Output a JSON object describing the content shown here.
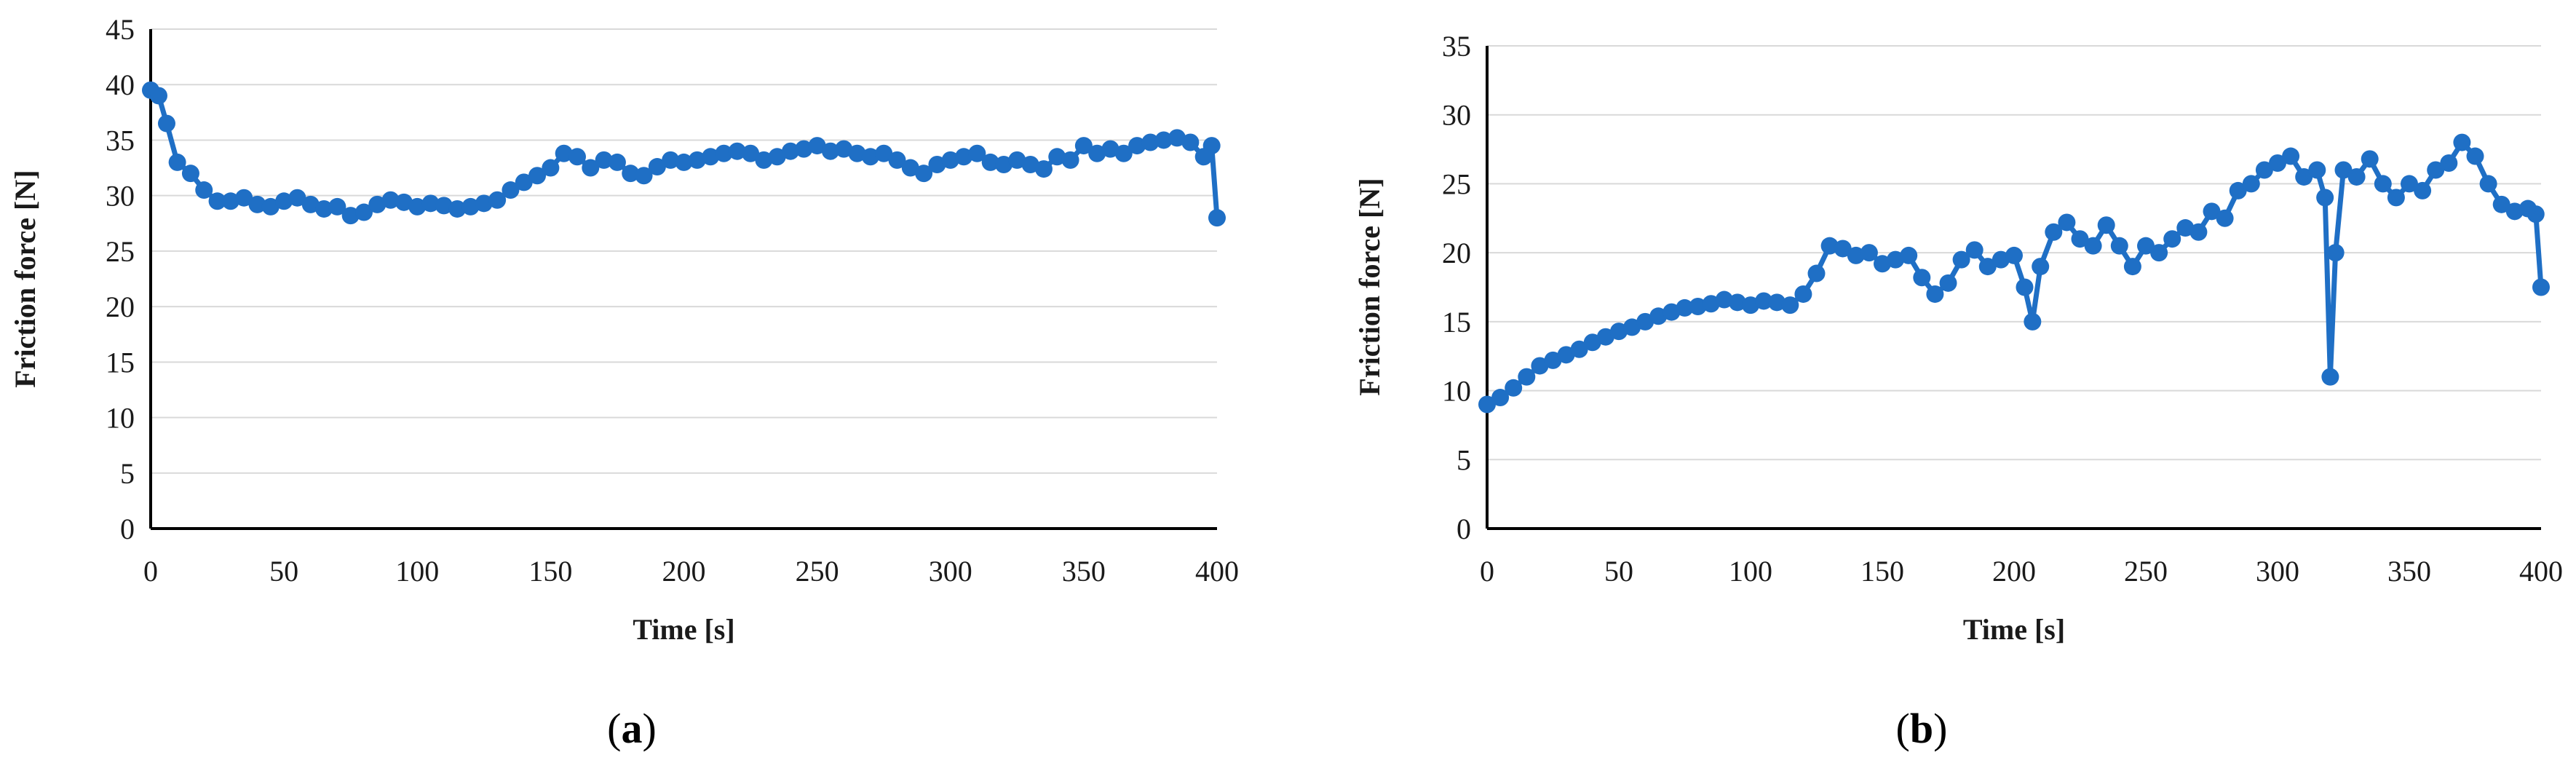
{
  "colors": {
    "series": "#1F6FC5",
    "grid": "#d9d9d9",
    "axis": "#000000"
  },
  "chart_data": [
    {
      "type": "line",
      "panel_label": "a",
      "xlabel": "Time [s]",
      "ylabel": "Friction force [N]",
      "xlim": [
        0,
        400
      ],
      "ylim": [
        0,
        45
      ],
      "x_ticks": [
        0,
        50,
        100,
        150,
        200,
        250,
        300,
        350,
        400
      ],
      "y_ticks": [
        0,
        5,
        10,
        15,
        20,
        25,
        30,
        35,
        40,
        45
      ],
      "grid": "horizontal",
      "markers": true,
      "series": [
        {
          "x": [
            0,
            3,
            6,
            10,
            15,
            20,
            25,
            30,
            35,
            40,
            45,
            50,
            55,
            60,
            65,
            70,
            75,
            80,
            85,
            90,
            95,
            100,
            105,
            110,
            115,
            120,
            125,
            130,
            135,
            140,
            145,
            150,
            155,
            160,
            165,
            170,
            175,
            180,
            185,
            190,
            195,
            200,
            205,
            210,
            215,
            220,
            225,
            230,
            235,
            240,
            245,
            250,
            255,
            260,
            265,
            270,
            275,
            280,
            285,
            290,
            295,
            300,
            305,
            310,
            315,
            320,
            325,
            330,
            335,
            340,
            345,
            350,
            355,
            360,
            365,
            370,
            375,
            380,
            385,
            390,
            395,
            398,
            400
          ],
          "y": [
            39.5,
            39,
            36.5,
            33,
            32,
            30.5,
            29.5,
            29.5,
            29.8,
            29.2,
            29,
            29.5,
            29.8,
            29.2,
            28.8,
            29,
            28.2,
            28.5,
            29.2,
            29.6,
            29.4,
            29,
            29.3,
            29.1,
            28.8,
            29,
            29.3,
            29.6,
            30.5,
            31.2,
            31.8,
            32.5,
            33.8,
            33.5,
            32.5,
            33.2,
            33,
            32,
            31.8,
            32.6,
            33.2,
            33,
            33.2,
            33.5,
            33.8,
            34,
            33.8,
            33.2,
            33.5,
            34,
            34.2,
            34.5,
            34,
            34.2,
            33.8,
            33.5,
            33.8,
            33.2,
            32.5,
            32,
            32.8,
            33.2,
            33.5,
            33.8,
            33,
            32.8,
            33.2,
            32.8,
            32.4,
            33.5,
            33.2,
            34.5,
            33.8,
            34.2,
            33.8,
            34.5,
            34.8,
            35,
            35.2,
            34.8,
            33.5,
            34.5,
            28
          ]
        }
      ]
    },
    {
      "type": "line",
      "panel_label": "b",
      "xlabel": "Time [s]",
      "ylabel": "Friction force [N]",
      "xlim": [
        0,
        400
      ],
      "ylim": [
        0,
        35
      ],
      "x_ticks": [
        0,
        50,
        100,
        150,
        200,
        250,
        300,
        350,
        400
      ],
      "y_ticks": [
        0,
        5,
        10,
        15,
        20,
        25,
        30,
        35
      ],
      "grid": "horizontal",
      "markers": true,
      "series": [
        {
          "x": [
            0,
            5,
            10,
            15,
            20,
            25,
            30,
            35,
            40,
            45,
            50,
            55,
            60,
            65,
            70,
            75,
            80,
            85,
            90,
            95,
            100,
            105,
            110,
            115,
            120,
            125,
            130,
            135,
            140,
            145,
            150,
            155,
            160,
            165,
            170,
            175,
            180,
            185,
            190,
            195,
            200,
            204,
            207,
            210,
            215,
            220,
            225,
            230,
            235,
            240,
            245,
            250,
            255,
            260,
            265,
            270,
            275,
            280,
            285,
            290,
            295,
            300,
            305,
            310,
            315,
            318,
            320,
            322,
            325,
            330,
            335,
            340,
            345,
            350,
            355,
            360,
            365,
            370,
            375,
            380,
            385,
            390,
            395,
            398,
            400
          ],
          "y": [
            9,
            9.5,
            10.2,
            11,
            11.8,
            12.2,
            12.6,
            13,
            13.5,
            13.9,
            14.3,
            14.6,
            15,
            15.4,
            15.7,
            16,
            16.1,
            16.3,
            16.6,
            16.4,
            16.2,
            16.5,
            16.4,
            16.2,
            17,
            18.5,
            20.5,
            20.3,
            19.8,
            20,
            19.2,
            19.5,
            19.8,
            18.2,
            17,
            17.8,
            19.5,
            20.2,
            19,
            19.5,
            19.8,
            17.5,
            15,
            19,
            21.5,
            22.2,
            21,
            20.5,
            22,
            20.5,
            19,
            20.5,
            20,
            21,
            21.8,
            21.5,
            23,
            22.5,
            24.5,
            25,
            26,
            26.5,
            27,
            25.5,
            26,
            24,
            11,
            20,
            26,
            25.5,
            26.8,
            25,
            24,
            25,
            24.5,
            26,
            26.5,
            28,
            27,
            25,
            23.5,
            23,
            23.2,
            22.8,
            17.5
          ]
        }
      ]
    }
  ]
}
